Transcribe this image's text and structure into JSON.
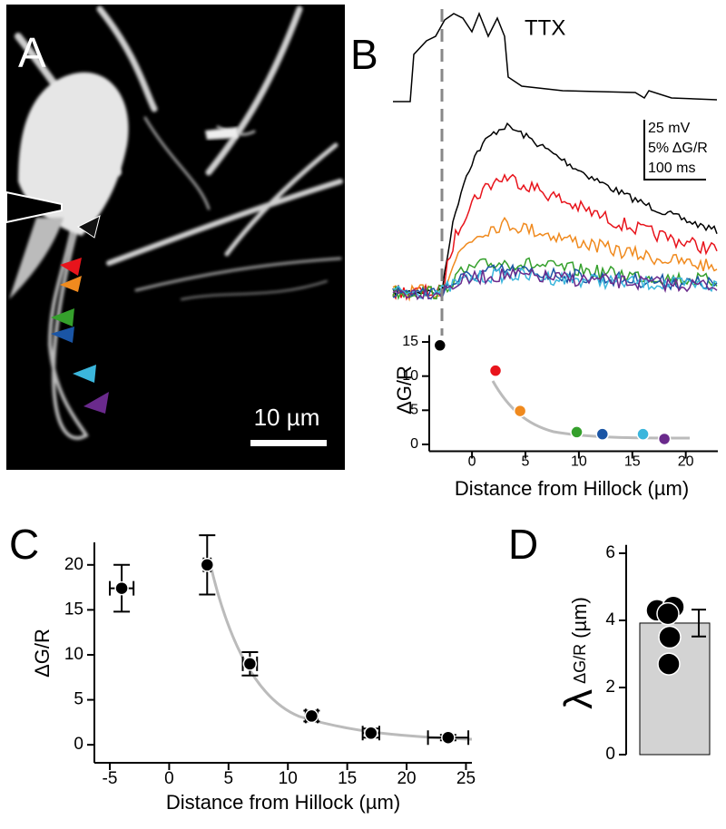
{
  "panel_labels": [
    "A",
    "B",
    "C",
    "D"
  ],
  "panel_a": {
    "scale_bar": "10 µm"
  },
  "panel_b": {
    "trace_label": "TTX",
    "scale_labels": [
      "25 mV",
      "5% ΔG/R",
      "100 ms"
    ]
  },
  "chart_data": [
    {
      "type": "scatter",
      "ylabel": "ΔG/R",
      "xlabel": "Distance from Hillock (µm)",
      "x": [
        -3,
        2.2,
        4.5,
        9.8,
        12.2,
        16,
        18
      ],
      "values": [
        14.5,
        10.8,
        4.9,
        1.8,
        1.5,
        1.5,
        0.8
      ],
      "colors": [
        "#000000",
        "#e8141c",
        "#f08a1e",
        "#35a02c",
        "#1a55a5",
        "#3bb6dc",
        "#6a2a8c"
      ],
      "xlim": [
        -4,
        23
      ],
      "ylim": [
        -1,
        16
      ],
      "xticks": [
        0,
        5,
        10,
        15,
        20
      ],
      "yticks": [
        0,
        5,
        10,
        15
      ]
    },
    {
      "type": "scatter",
      "ylabel": "ΔG/R",
      "xlabel": "Distance from Hillock (µm)",
      "x": [
        -4,
        3.2,
        6.8,
        12,
        17,
        23.5
      ],
      "values": [
        17.4,
        20,
        9,
        3.2,
        1.3,
        0.8
      ],
      "xerr": [
        1,
        0.3,
        0.6,
        0.5,
        0.7,
        1.7
      ],
      "yerr": [
        2.6,
        3.3,
        1.3,
        0.6,
        0.5,
        0.3
      ],
      "color": "#000000",
      "xlim": [
        -6.3,
        25.5
      ],
      "ylim": [
        -2,
        22.5
      ],
      "xticks": [
        -5,
        0,
        5,
        10,
        15,
        20,
        25
      ],
      "yticks": [
        0,
        5,
        10,
        15,
        20
      ]
    },
    {
      "type": "bar",
      "ylabel": "λ",
      "ylabel_subscript": "ΔG/R",
      "ylabel_unit": "(µm)",
      "value": 3.92,
      "error": 0.4,
      "points": [
        4.3,
        4.4,
        4.2,
        3.5,
        2.7
      ],
      "color": "#d3d3d3",
      "ylim": [
        0,
        6.25
      ],
      "yticks": [
        0,
        2,
        4,
        6
      ]
    }
  ]
}
